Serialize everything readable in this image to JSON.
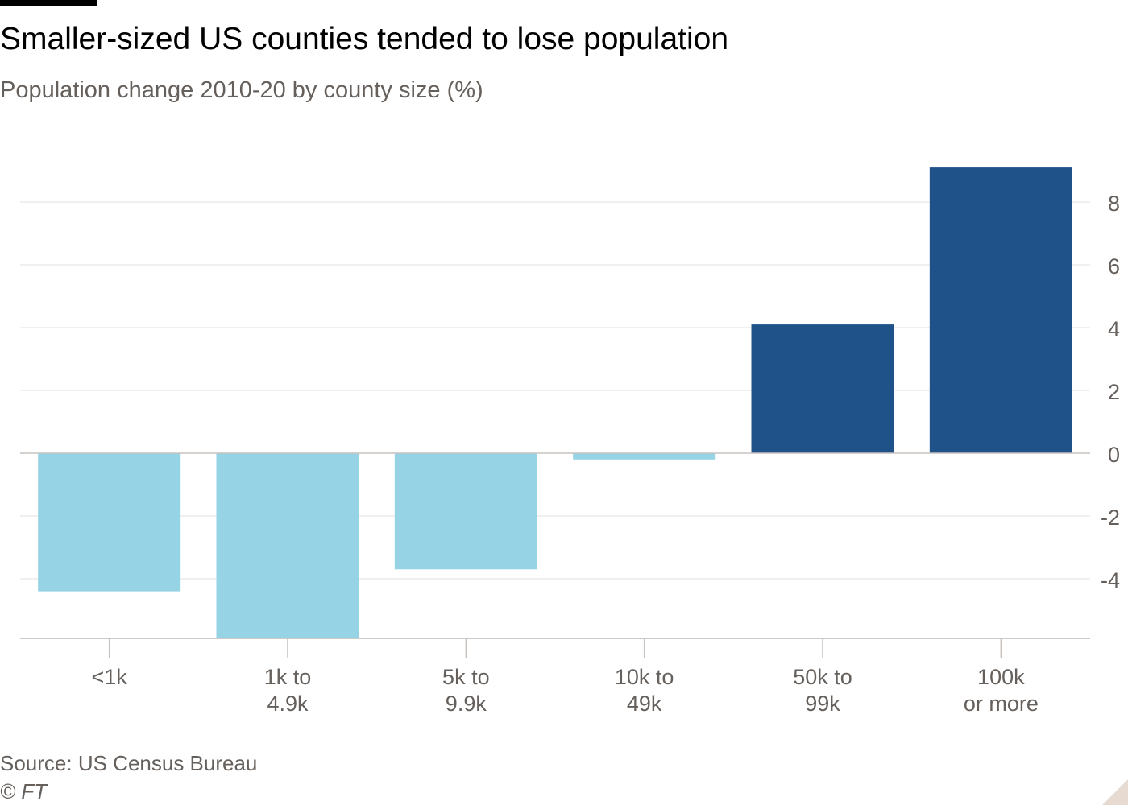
{
  "header": {
    "title": "Smaller-sized US counties tended to lose population",
    "subtitle": "Population change 2010-20 by county size (%)"
  },
  "footer": {
    "source": "Source: US Census Bureau",
    "credit": "© FT"
  },
  "chart_data": {
    "type": "bar",
    "title": "Smaller-sized US counties tended to lose population",
    "subtitle": "Population change 2010-20 by county size (%)",
    "categories": [
      [
        "<1k"
      ],
      [
        "1k to",
        "4.9k"
      ],
      [
        "5k to",
        "9.9k"
      ],
      [
        "10k to",
        "49k"
      ],
      [
        "50k to",
        "99k"
      ],
      [
        "100k",
        "or more"
      ]
    ],
    "values": [
      -4.4,
      -5.9,
      -3.7,
      -0.2,
      4.1,
      9.1
    ],
    "ylim": [
      -5.9,
      9.1
    ],
    "yticks": [
      8,
      6,
      4,
      2,
      0,
      -2,
      -4
    ],
    "y_axis_side": "right",
    "grid": true,
    "colors": {
      "negative": "#96d3e4",
      "positive": "#20528a",
      "grid": "#e6e1dd",
      "zero_line": "#c7c2be",
      "text": "#66605c"
    }
  }
}
